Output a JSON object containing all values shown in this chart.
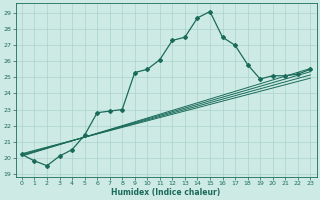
{
  "xlabel": "Humidex (Indice chaleur)",
  "bg_color": "#ceeae4",
  "grid_color": "#aad4cc",
  "line_color": "#1a6b5a",
  "xlim": [
    -0.5,
    23.5
  ],
  "ylim": [
    18.8,
    29.6
  ],
  "yticks": [
    19,
    20,
    21,
    22,
    23,
    24,
    25,
    26,
    27,
    28,
    29
  ],
  "xticks": [
    0,
    1,
    2,
    3,
    4,
    5,
    6,
    7,
    8,
    9,
    10,
    11,
    12,
    13,
    14,
    15,
    16,
    17,
    18,
    19,
    20,
    21,
    22,
    23
  ],
  "main_x": [
    0,
    1,
    2,
    3,
    4,
    5,
    6,
    7,
    8,
    9,
    10,
    11,
    12,
    13,
    14,
    15,
    16,
    17,
    18,
    19,
    20,
    21,
    22,
    23
  ],
  "main_y": [
    20.2,
    19.8,
    19.5,
    20.1,
    20.5,
    21.4,
    22.8,
    22.9,
    23.0,
    25.3,
    25.5,
    26.1,
    27.3,
    27.5,
    28.7,
    29.1,
    27.5,
    27.0,
    25.8,
    24.9,
    25.1,
    25.1,
    25.2,
    25.5
  ],
  "linear_lines": [
    {
      "x": [
        0,
        23
      ],
      "y": [
        20.1,
        25.55
      ]
    },
    {
      "x": [
        0,
        23
      ],
      "y": [
        20.15,
        25.35
      ]
    },
    {
      "x": [
        0,
        23
      ],
      "y": [
        20.2,
        25.15
      ]
    },
    {
      "x": [
        0,
        23
      ],
      "y": [
        20.25,
        24.95
      ]
    }
  ]
}
